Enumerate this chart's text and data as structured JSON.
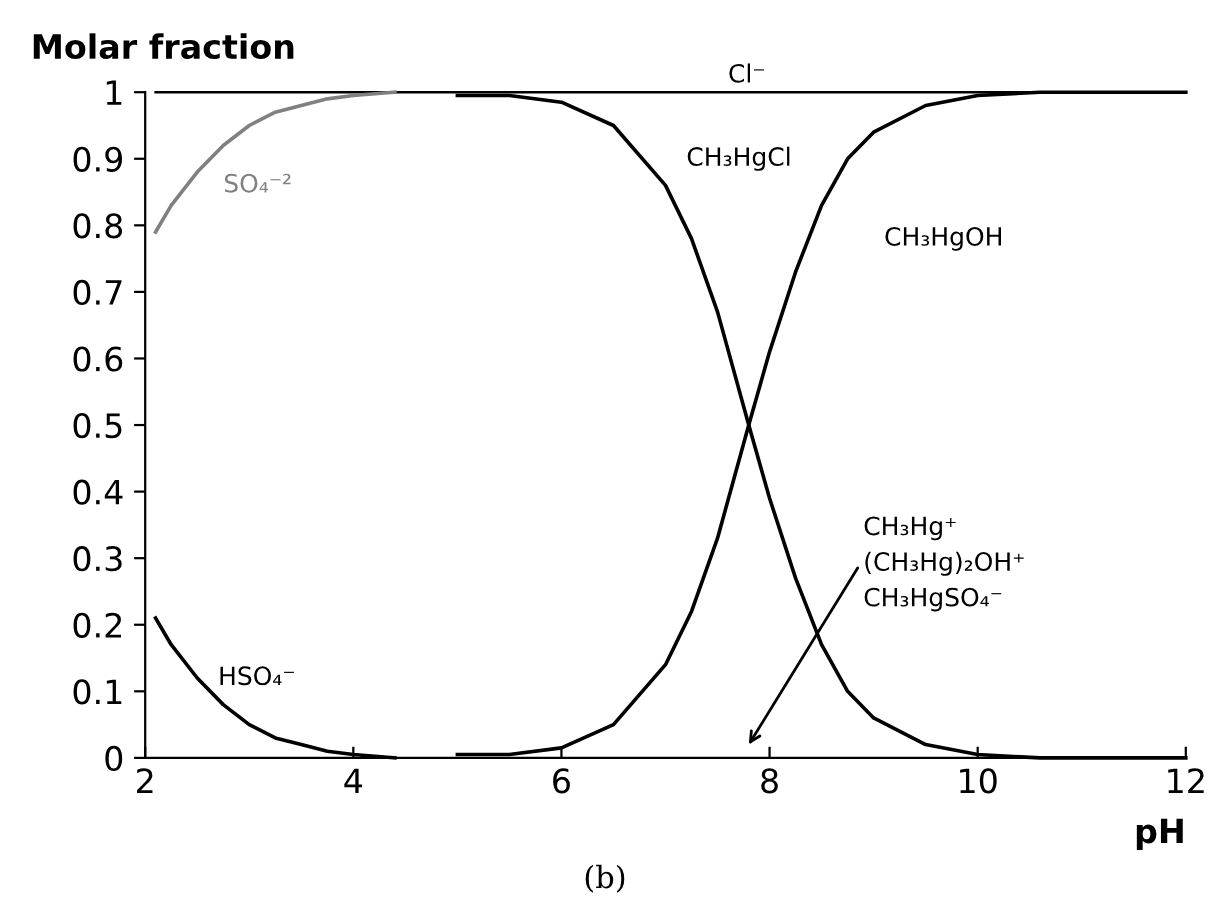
{
  "chart_data": {
    "type": "line",
    "ylabel": "Molar fraction",
    "xlabel": "pH",
    "xlim": [
      2,
      12
    ],
    "xticks": [
      2,
      4,
      6,
      8,
      10,
      12
    ],
    "ylim": [
      0,
      1
    ],
    "yticks": [
      0,
      0.1,
      0.2,
      0.3,
      0.4,
      0.5,
      0.6,
      0.7,
      0.8,
      0.9,
      1
    ],
    "series": [
      {
        "name": "Cl⁻",
        "color": "#000000",
        "x": [
          2.1,
          12
        ],
        "values": [
          1,
          1
        ]
      },
      {
        "name": "SO₄⁻²",
        "color": "#808080",
        "x": [
          2.1,
          2.25,
          2.5,
          2.75,
          3,
          3.25,
          3.5,
          3.75,
          4,
          4.4
        ],
        "values": [
          0.79,
          0.83,
          0.88,
          0.92,
          0.95,
          0.97,
          0.98,
          0.99,
          0.995,
          1
        ]
      },
      {
        "name": "HSO₄⁻",
        "color": "#000000",
        "x": [
          2.1,
          2.25,
          2.5,
          2.75,
          3,
          3.25,
          3.5,
          3.75,
          4,
          4.4
        ],
        "values": [
          0.21,
          0.17,
          0.12,
          0.08,
          0.05,
          0.03,
          0.02,
          0.01,
          0.005,
          0
        ]
      },
      {
        "name": "CH₃HgCl",
        "color": "#000000",
        "x": [
          5,
          5.5,
          6,
          6.5,
          7,
          7.25,
          7.5,
          7.8,
          8,
          8.25,
          8.5,
          8.75,
          9,
          9.5,
          10,
          10.6,
          12
        ],
        "values": [
          0.995,
          0.995,
          0.985,
          0.95,
          0.86,
          0.78,
          0.67,
          0.5,
          0.39,
          0.27,
          0.17,
          0.1,
          0.06,
          0.02,
          0.005,
          0,
          0
        ]
      },
      {
        "name": "CH₃HgOH",
        "color": "#000000",
        "x": [
          5,
          5.5,
          6,
          6.5,
          7,
          7.25,
          7.5,
          7.8,
          8,
          8.25,
          8.5,
          8.75,
          9,
          9.5,
          10,
          10.6,
          12
        ],
        "values": [
          0.005,
          0.005,
          0.015,
          0.05,
          0.14,
          0.22,
          0.33,
          0.5,
          0.61,
          0.73,
          0.83,
          0.9,
          0.94,
          0.98,
          0.995,
          1,
          1
        ]
      }
    ],
    "annotations": [
      "CH₃Hg⁺\n(CH₃Hg)₂OH⁺\nCH₃HgSO₄⁻",
      "(b)"
    ]
  }
}
